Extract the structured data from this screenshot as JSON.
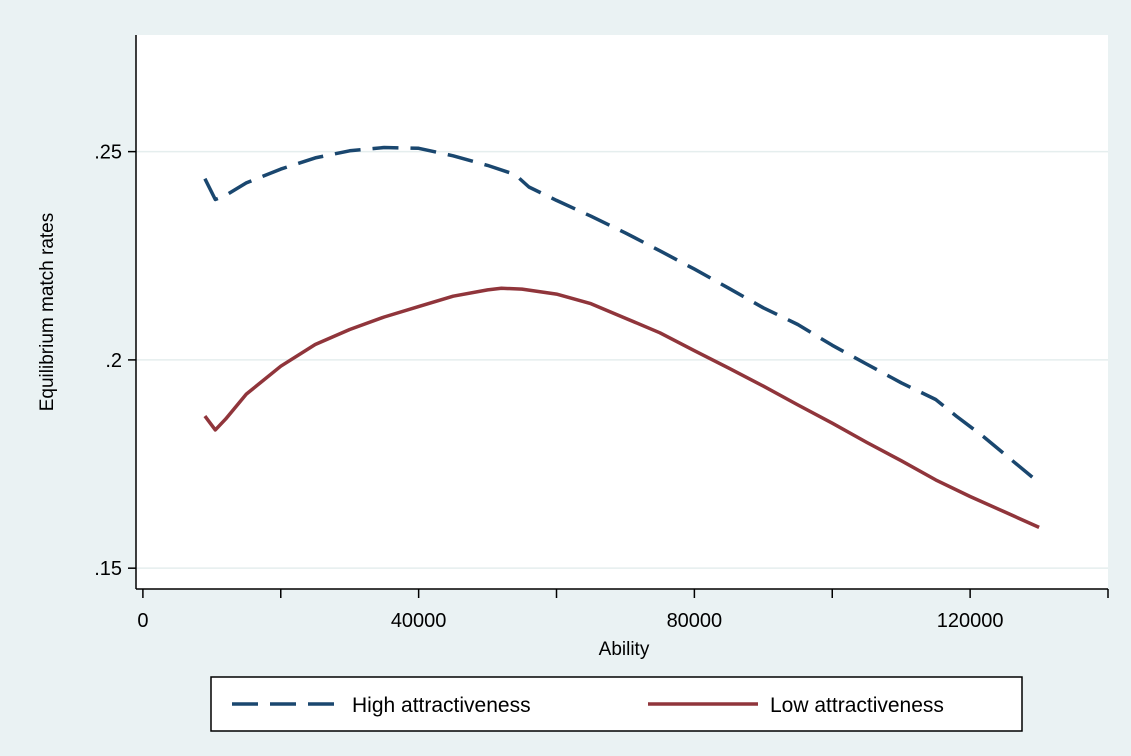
{
  "chart_data": {
    "type": "line",
    "xlabel": "Ability",
    "ylabel": "Equilibrium match rates",
    "xlim": [
      -1000,
      140000
    ],
    "ylim": [
      0.145,
      0.278
    ],
    "xticks": [
      0,
      40000,
      80000,
      120000
    ],
    "xtick_labels": [
      "0",
      "40000",
      "80000",
      "120000"
    ],
    "xminor": [
      20000,
      60000,
      100000,
      140000
    ],
    "yticks": [
      0.15,
      0.2,
      0.25
    ],
    "ytick_labels": [
      ".15",
      ".2",
      ".25"
    ],
    "grid": "horizontal",
    "legend_position": "bottom",
    "series": [
      {
        "name": "High attractiveness",
        "color": "#1a476f",
        "style": "dashed",
        "x": [
          9000,
          10500,
          12000,
          15000,
          20000,
          25000,
          30000,
          35000,
          40000,
          45000,
          50000,
          54000,
          56000,
          60000,
          65000,
          70000,
          75000,
          80000,
          85000,
          90000,
          95000,
          100000,
          105000,
          110000,
          115000,
          118000,
          122000,
          126000,
          130000
        ],
        "y": [
          0.2435,
          0.2385,
          0.2395,
          0.2425,
          0.2458,
          0.2485,
          0.2502,
          0.251,
          0.2508,
          0.249,
          0.2467,
          0.2445,
          0.2415,
          0.2383,
          0.2345,
          0.2305,
          0.2262,
          0.2218,
          0.2172,
          0.2125,
          0.2085,
          0.2035,
          0.199,
          0.1945,
          0.1905,
          0.1865,
          0.1815,
          0.176,
          0.1705
        ]
      },
      {
        "name": "Low attractiveness",
        "color": "#90353b",
        "style": "solid",
        "x": [
          9000,
          10500,
          12000,
          15000,
          20000,
          25000,
          30000,
          35000,
          40000,
          45000,
          50000,
          52000,
          55000,
          60000,
          65000,
          70000,
          75000,
          80000,
          85000,
          90000,
          95000,
          100000,
          105000,
          110000,
          115000,
          120000,
          125000,
          130000
        ],
        "y": [
          0.1865,
          0.1832,
          0.1858,
          0.1918,
          0.1985,
          0.2037,
          0.2073,
          0.2103,
          0.2128,
          0.2153,
          0.2168,
          0.2172,
          0.217,
          0.2158,
          0.2135,
          0.21,
          0.2065,
          0.2022,
          0.198,
          0.1937,
          0.1892,
          0.1848,
          0.1802,
          0.1758,
          0.1712,
          0.1672,
          0.1635,
          0.1598
        ]
      }
    ]
  }
}
